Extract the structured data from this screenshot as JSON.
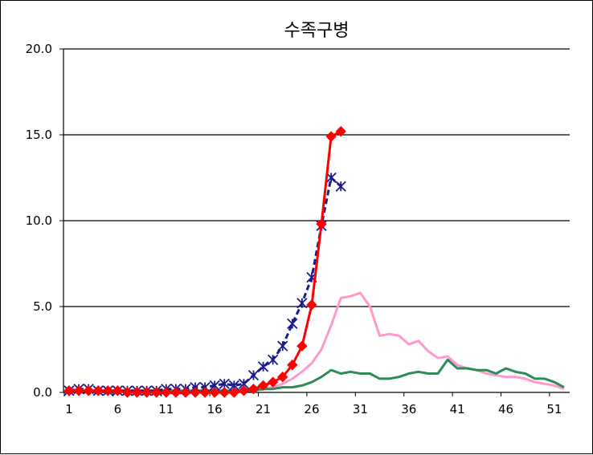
{
  "chart_data": {
    "type": "line",
    "title": "수족구병",
    "xlabel": "",
    "ylabel": "",
    "ylim": [
      0,
      20
    ],
    "y_ticks": [
      "0.0",
      "5.0",
      "10.0",
      "15.0",
      "20.0"
    ],
    "x_ticks": [
      "1",
      "6",
      "11",
      "16",
      "21",
      "26",
      "31",
      "36",
      "41",
      "46",
      "51"
    ],
    "xlim": [
      1,
      52
    ],
    "grid": "horizontal",
    "legend": "none",
    "series": [
      {
        "color": "#ff99cc",
        "marker": "none",
        "style": "solid",
        "x": [
          1,
          2,
          3,
          4,
          5,
          6,
          7,
          8,
          9,
          10,
          11,
          12,
          13,
          14,
          15,
          16,
          17,
          18,
          19,
          20,
          21,
          22,
          23,
          24,
          25,
          26,
          27,
          28,
          29,
          30,
          31,
          32,
          33,
          34,
          35,
          36,
          37,
          38,
          39,
          40,
          41,
          42,
          43,
          44,
          45,
          46,
          47,
          48,
          49,
          50,
          51,
          52
        ],
        "values": [
          0.1,
          0.1,
          0.1,
          0.1,
          0.1,
          0.1,
          0.1,
          0.1,
          0.1,
          0.1,
          0.1,
          0.1,
          0.1,
          0.1,
          0.1,
          0.1,
          0.1,
          0.1,
          0.1,
          0.1,
          0.2,
          0.3,
          0.5,
          0.8,
          1.2,
          1.7,
          2.5,
          3.9,
          5.5,
          5.6,
          5.8,
          5.0,
          3.3,
          3.4,
          3.3,
          2.8,
          3.0,
          2.4,
          2.0,
          2.1,
          1.6,
          1.4,
          1.3,
          1.1,
          1.0,
          0.9,
          0.9,
          0.8,
          0.6,
          0.5,
          0.4,
          0.2
        ]
      },
      {
        "color": "#2e8b57",
        "marker": "none",
        "style": "solid",
        "x": [
          1,
          2,
          3,
          4,
          5,
          6,
          7,
          8,
          9,
          10,
          11,
          12,
          13,
          14,
          15,
          16,
          17,
          18,
          19,
          20,
          21,
          22,
          23,
          24,
          25,
          26,
          27,
          28,
          29,
          30,
          31,
          32,
          33,
          34,
          35,
          36,
          37,
          38,
          39,
          40,
          41,
          42,
          43,
          44,
          45,
          46,
          47,
          48,
          49,
          50,
          51,
          52
        ],
        "values": [
          0.1,
          0.1,
          0.1,
          0.1,
          0.1,
          0.1,
          0.1,
          0.1,
          0.1,
          0.1,
          0.1,
          0.1,
          0.1,
          0.1,
          0.1,
          0.1,
          0.1,
          0.1,
          0.1,
          0.1,
          0.2,
          0.2,
          0.3,
          0.3,
          0.4,
          0.6,
          0.9,
          1.3,
          1.1,
          1.2,
          1.1,
          1.1,
          0.8,
          0.8,
          0.9,
          1.1,
          1.2,
          1.1,
          1.1,
          1.9,
          1.4,
          1.4,
          1.3,
          1.3,
          1.1,
          1.4,
          1.2,
          1.1,
          0.8,
          0.8,
          0.6,
          0.3
        ]
      },
      {
        "color": "#1a1a8c",
        "marker": "asterisk",
        "style": "dashed",
        "x": [
          1,
          2,
          3,
          4,
          5,
          6,
          7,
          8,
          9,
          10,
          11,
          12,
          13,
          14,
          15,
          16,
          17,
          18,
          19,
          20,
          21,
          22,
          23,
          24,
          25,
          26,
          27,
          28,
          29
        ],
        "values": [
          0.1,
          0.2,
          0.2,
          0.1,
          0.1,
          0.1,
          0.1,
          0.1,
          0.1,
          0.1,
          0.2,
          0.2,
          0.2,
          0.3,
          0.3,
          0.4,
          0.5,
          0.4,
          0.5,
          1.0,
          1.5,
          1.9,
          2.7,
          4.0,
          5.2,
          6.7,
          9.7,
          12.5,
          12.0
        ]
      },
      {
        "color": "#ff0000",
        "marker": "diamond",
        "style": "solid",
        "x": [
          1,
          2,
          3,
          4,
          5,
          6,
          7,
          8,
          9,
          10,
          11,
          12,
          13,
          14,
          15,
          16,
          17,
          18,
          19,
          20,
          21,
          22,
          23,
          24,
          25,
          26,
          27,
          28,
          29
        ],
        "values": [
          0.1,
          0.1,
          0.1,
          0.1,
          0.1,
          0.1,
          0.0,
          0.0,
          0.0,
          0.0,
          0.0,
          0.0,
          0.0,
          0.0,
          0.0,
          0.0,
          0.0,
          0.0,
          0.1,
          0.2,
          0.4,
          0.6,
          0.9,
          1.6,
          2.7,
          5.1,
          9.8,
          14.9,
          15.2
        ]
      }
    ]
  }
}
